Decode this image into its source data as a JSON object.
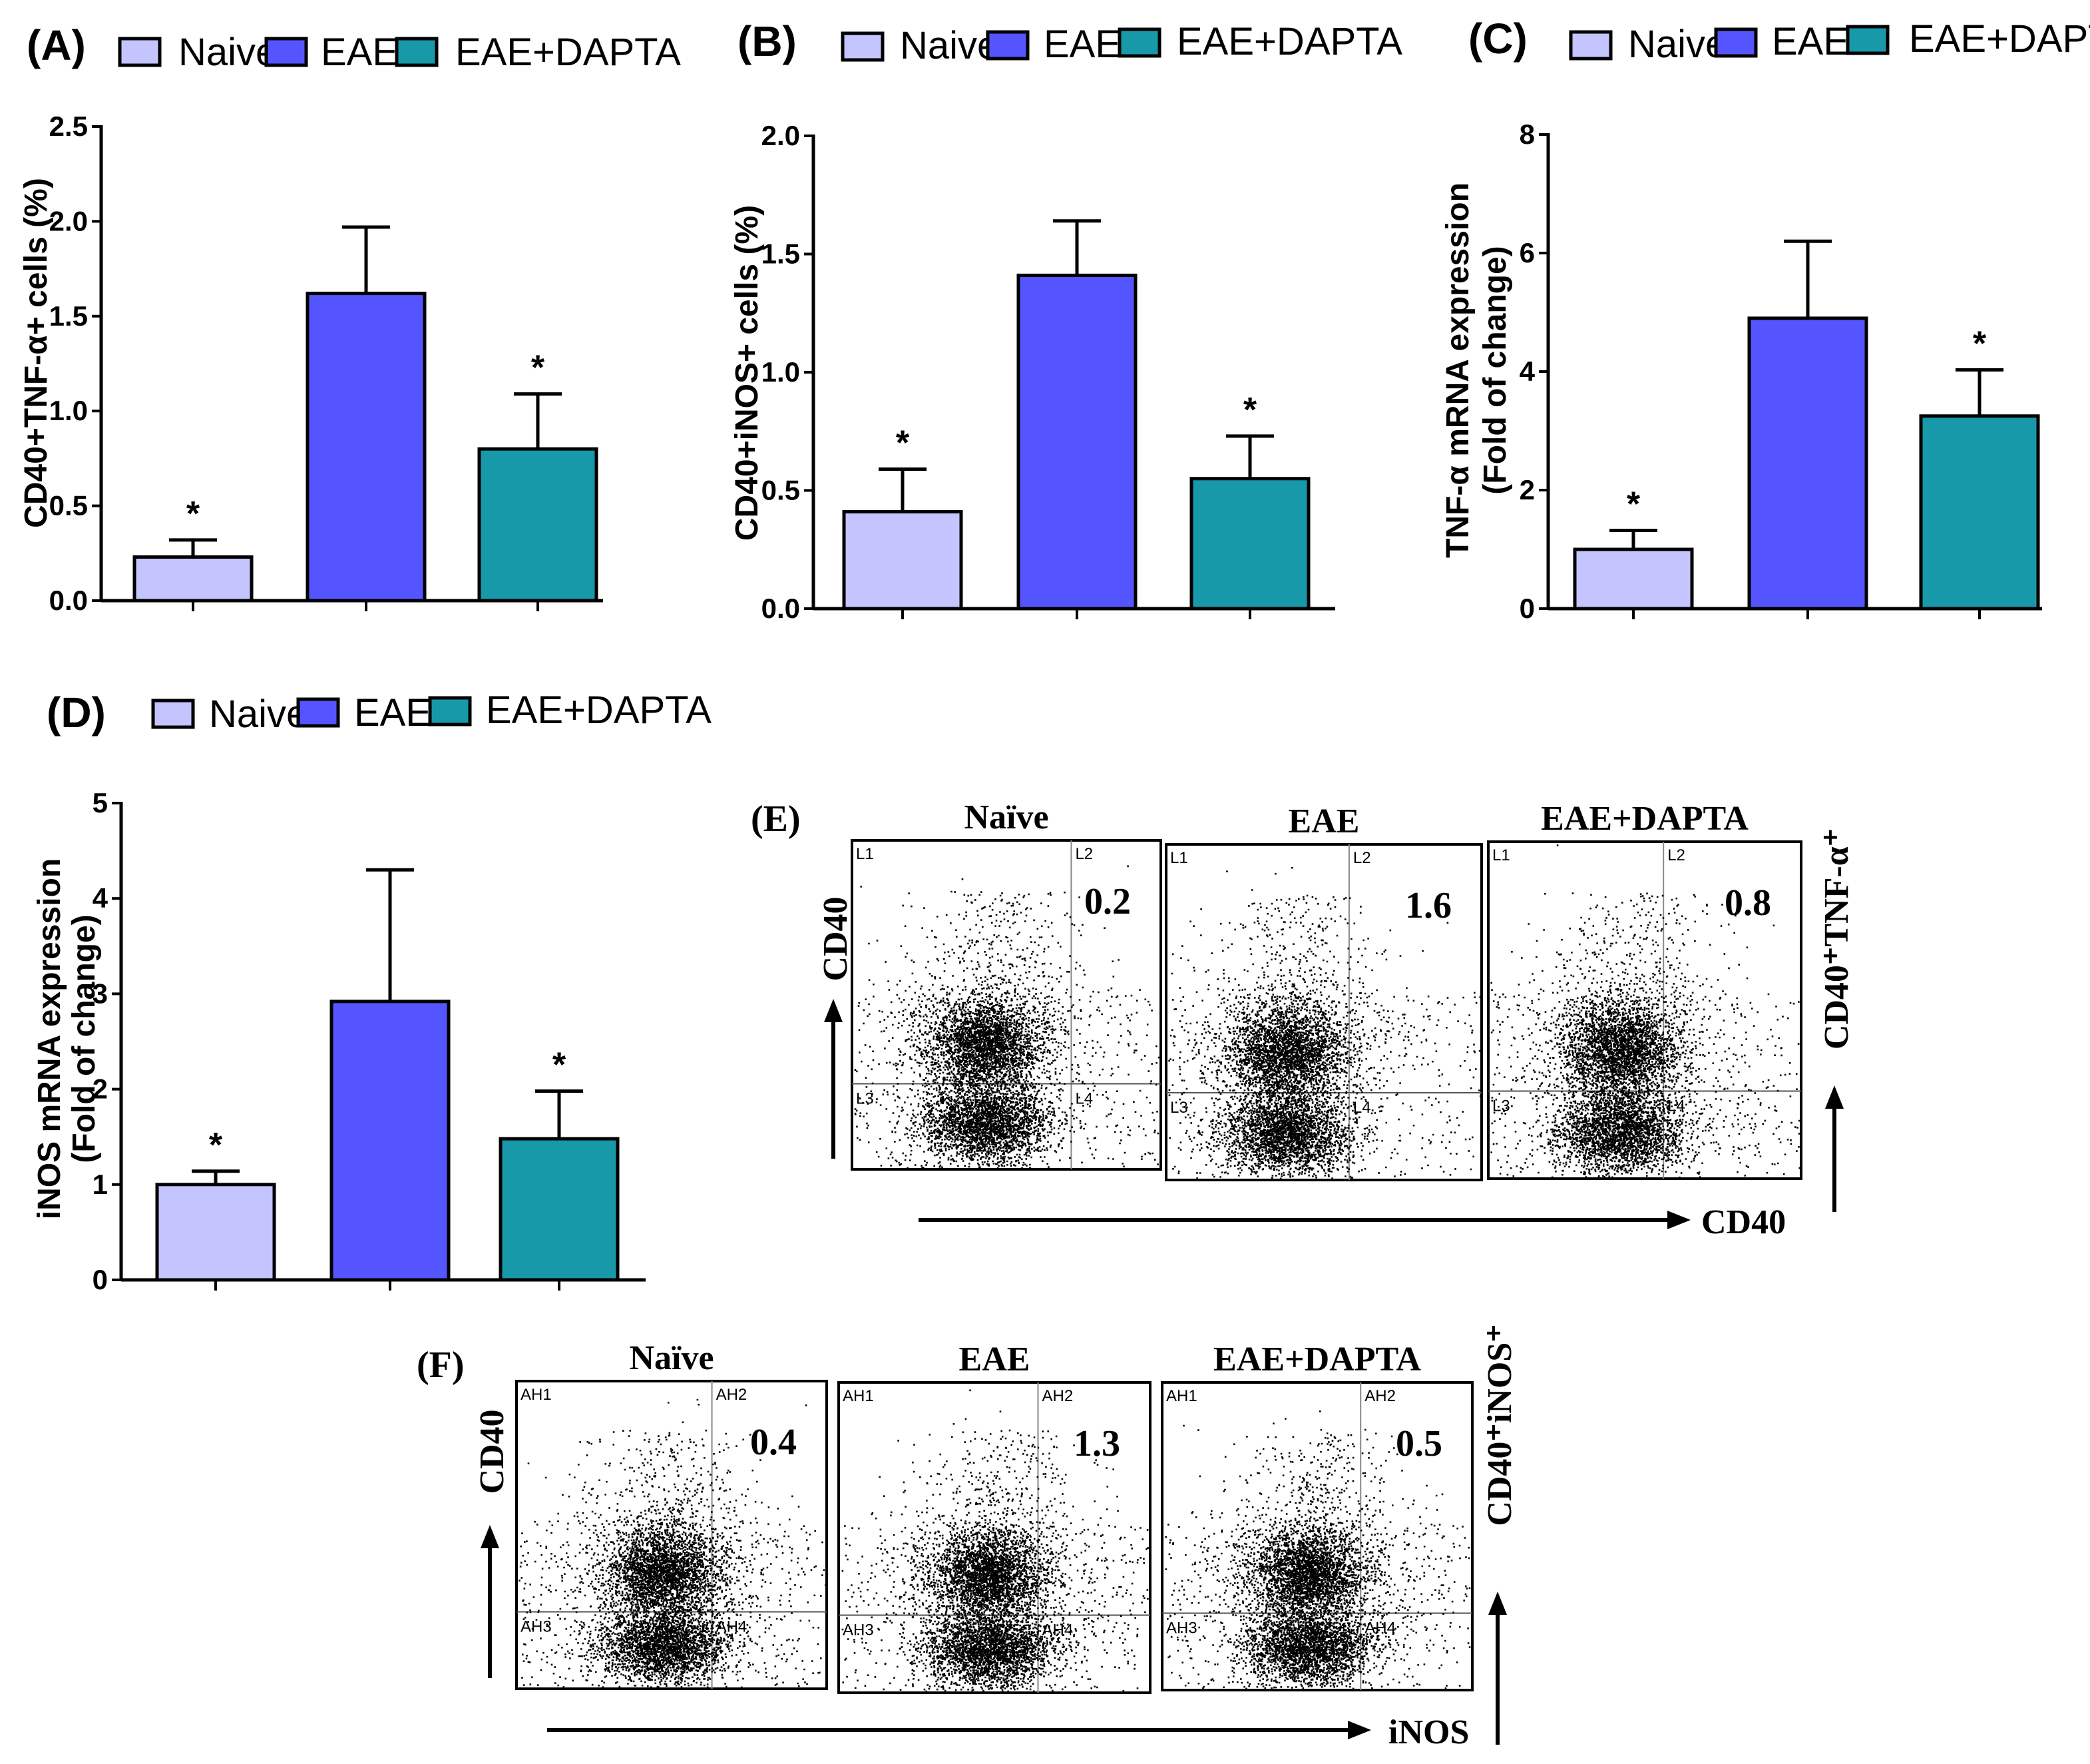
{
  "colors": {
    "naive": "#c4c4ff",
    "eae": "#5555ff",
    "eae_dapta": "#1799aa",
    "axis": "#000000"
  },
  "legend": [
    "Naive",
    "EAE",
    "EAE+DAPTA"
  ],
  "chart_data": [
    {
      "id": "A",
      "type": "bar",
      "panel_label": "(A)",
      "categories": [
        "Naive",
        "EAE",
        "EAE+DAPTA"
      ],
      "values": [
        0.23,
        1.62,
        0.8
      ],
      "errors": [
        0.09,
        0.35,
        0.29
      ],
      "significance": [
        "*",
        "",
        "*"
      ],
      "ylabel": "CD40+TNF-α+ cells (%)",
      "ylim": [
        0,
        2.5
      ],
      "yticks": [
        "0.0",
        "0.5",
        "1.0",
        "1.5",
        "2.0",
        "2.5"
      ]
    },
    {
      "id": "B",
      "type": "bar",
      "panel_label": "(B)",
      "categories": [
        "Naive",
        "EAE",
        "EAE+DAPTA"
      ],
      "values": [
        0.41,
        1.41,
        0.55
      ],
      "errors": [
        0.18,
        0.23,
        0.18
      ],
      "significance": [
        "*",
        "",
        "*"
      ],
      "ylabel": "CD40+iNOS+ cells (%)",
      "ylim": [
        0,
        2.0
      ],
      "yticks": [
        "0.0",
        "0.5",
        "1.0",
        "1.5",
        "2.0"
      ]
    },
    {
      "id": "C",
      "type": "bar",
      "panel_label": "(C)",
      "categories": [
        "Naive",
        "EAE",
        "EAE+DAPTA"
      ],
      "values": [
        1.0,
        4.9,
        3.25
      ],
      "errors": [
        0.32,
        1.3,
        0.78
      ],
      "significance": [
        "*",
        "",
        "*"
      ],
      "ylabel": "TNF-α mRNA expression",
      "ylabel2": "(Fold of change)",
      "ylim": [
        0,
        8
      ],
      "yticks": [
        "0",
        "2",
        "4",
        "6",
        "8"
      ]
    },
    {
      "id": "D",
      "type": "bar",
      "panel_label": "(D)",
      "categories": [
        "Naive",
        "EAE",
        "EAE+DAPTA"
      ],
      "values": [
        1.0,
        2.92,
        1.48
      ],
      "errors": [
        0.14,
        1.38,
        0.5
      ],
      "significance": [
        "*",
        "",
        "*"
      ],
      "ylabel": "iNOS mRNA expression",
      "ylabel2": "(Fold of change)",
      "ylim": [
        0,
        5
      ],
      "yticks": [
        "0",
        "1",
        "2",
        "3",
        "4",
        "5"
      ]
    }
  ],
  "flow_e": {
    "panel_label": "(E)",
    "titles": [
      "Naïve",
      "EAE",
      "EAE+DAPTA"
    ],
    "values": [
      "0.2",
      "1.6",
      "0.8"
    ],
    "quadrants": [
      "L1",
      "L2",
      "L3",
      "L4"
    ],
    "y_axis": "CD40",
    "x_axis": "CD40",
    "right_label": "CD40⁺TNF-α⁺"
  },
  "flow_f": {
    "panel_label": "(F)",
    "titles": [
      "Naïve",
      "EAE",
      "EAE+DAPTA"
    ],
    "values": [
      "0.4",
      "1.3",
      "0.5"
    ],
    "quadrants": [
      "AH1",
      "AH2",
      "AH3",
      "AH4"
    ],
    "y_axis": "CD40",
    "x_axis": "iNOS",
    "right_label": "CD40⁺iNOS⁺"
  }
}
